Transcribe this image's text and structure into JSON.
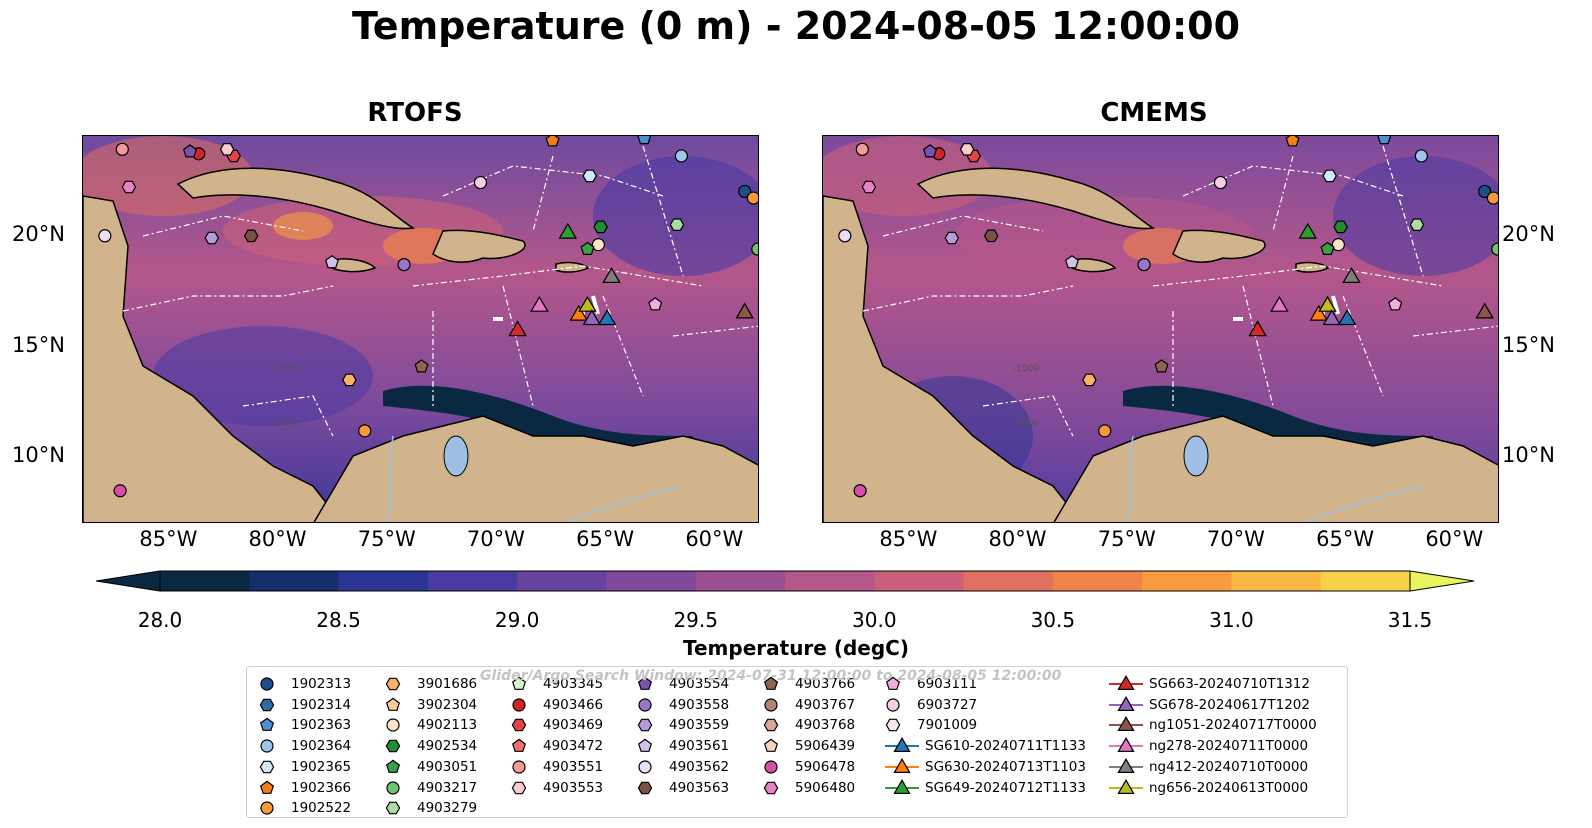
{
  "title": "Temperature (0 m) - 2024-08-05 12:00:00",
  "panels": [
    {
      "title": "RTOFS"
    },
    {
      "title": "CMEMS"
    }
  ],
  "map": {
    "lon_range": [
      -89,
      -58
    ],
    "lat_range": [
      7,
      24.5
    ],
    "lon_ticks": [
      "85°W",
      "80°W",
      "75°W",
      "70°W",
      "65°W",
      "60°W"
    ],
    "lat_ticks": [
      "20°N",
      "15°N",
      "10°N"
    ],
    "land_color": "#d2b48c",
    "contour_labels": [
      "-1000",
      "-1000"
    ]
  },
  "colorbar": {
    "title": "Temperature (degC)",
    "min": 28.0,
    "max": 31.5,
    "step": 0.25,
    "extend": "both",
    "ticks": [
      "28.0",
      "28.5",
      "29.0",
      "29.5",
      "30.0",
      "30.5",
      "31.0",
      "31.5"
    ],
    "colors": [
      "#0b2842",
      "#142f6a",
      "#2c3494",
      "#4a3ba3",
      "#67439f",
      "#80499a",
      "#9b4f93",
      "#b4578a",
      "#cb6079",
      "#e0705f",
      "#f08349",
      "#f89c3f",
      "#fab746",
      "#f5d24a",
      "#e9f55e"
    ]
  },
  "watermark": "Glider/Argo Search Window: 2024-07-31 12:00:00 to 2024-08-05 12:00:00",
  "legend": {
    "columns": [
      [
        {
          "label": "1902313",
          "marker": "circle",
          "color": "#1f4e8c"
        },
        {
          "label": "1902314",
          "marker": "hexagon",
          "color": "#2e6aa8"
        },
        {
          "label": "1902363",
          "marker": "pentagon",
          "color": "#4f8fcf"
        },
        {
          "label": "1902364",
          "marker": "circle",
          "color": "#9ec6ec"
        },
        {
          "label": "1902365",
          "marker": "hexagon",
          "color": "#d6e8f7"
        },
        {
          "label": "1902366",
          "marker": "pentagon",
          "color": "#f07f1a"
        },
        {
          "label": "1902522",
          "marker": "circle",
          "color": "#f59a3c"
        }
      ],
      [
        {
          "label": "3901686",
          "marker": "hexagon",
          "color": "#f7b26b"
        },
        {
          "label": "3902304",
          "marker": "pentagon",
          "color": "#fbcc9a"
        },
        {
          "label": "4902113",
          "marker": "circle",
          "color": "#fde3c8"
        },
        {
          "label": "4902534",
          "marker": "hexagon",
          "color": "#238b2f"
        },
        {
          "label": "4903051",
          "marker": "pentagon",
          "color": "#39a14a"
        },
        {
          "label": "4903217",
          "marker": "circle",
          "color": "#6cc56a"
        },
        {
          "label": "4903279",
          "marker": "hexagon",
          "color": "#a8dea0"
        }
      ],
      [
        {
          "label": "4903345",
          "marker": "pentagon",
          "color": "#d9f2d0"
        },
        {
          "label": "4903466",
          "marker": "circle",
          "color": "#d0232b"
        },
        {
          "label": "4903469",
          "marker": "hexagon",
          "color": "#e0464a"
        },
        {
          "label": "4903472",
          "marker": "pentagon",
          "color": "#ec6f70"
        },
        {
          "label": "4903551",
          "marker": "circle",
          "color": "#f29c9a"
        },
        {
          "label": "4903553",
          "marker": "hexagon",
          "color": "#f8cccb"
        }
      ],
      [
        {
          "label": "4903554",
          "marker": "pentagon",
          "color": "#7b52b0"
        },
        {
          "label": "4903558",
          "marker": "circle",
          "color": "#9a77c6"
        },
        {
          "label": "4903559",
          "marker": "hexagon",
          "color": "#b79ad8"
        },
        {
          "label": "4903561",
          "marker": "pentagon",
          "color": "#d3c0e8"
        },
        {
          "label": "4903562",
          "marker": "circle",
          "color": "#ebdff5"
        },
        {
          "label": "4903563",
          "marker": "hexagon",
          "color": "#7a5242"
        }
      ],
      [
        {
          "label": "4903766",
          "marker": "pentagon",
          "color": "#8e6452"
        },
        {
          "label": "4903767",
          "marker": "circle",
          "color": "#b08472"
        },
        {
          "label": "4903768",
          "marker": "hexagon",
          "color": "#d4a996"
        },
        {
          "label": "5906439",
          "marker": "pentagon",
          "color": "#f5d2c4"
        },
        {
          "label": "5906478",
          "marker": "circle",
          "color": "#d84fa8"
        },
        {
          "label": "5906480",
          "marker": "hexagon",
          "color": "#e883c3"
        }
      ],
      [
        {
          "label": "6903111",
          "marker": "pentagon",
          "color": "#f2aed9"
        },
        {
          "label": "6903727",
          "marker": "circle",
          "color": "#f8cbe7"
        },
        {
          "label": "7901009",
          "marker": "hexagon",
          "color": "#fbe3f1"
        },
        {
          "label": "SG610-20240711T1133",
          "marker": "triangle",
          "color": "#1f77b4"
        },
        {
          "label": "SG630-20240713T1103",
          "marker": "triangle",
          "color": "#ff7f0e"
        },
        {
          "label": "SG649-20240712T1133",
          "marker": "triangle",
          "color": "#2ca02c"
        }
      ],
      [
        {
          "label": "SG663-20240710T1312",
          "marker": "triangle",
          "color": "#d62728"
        },
        {
          "label": "SG678-20240617T1202",
          "marker": "triangle",
          "color": "#9467bd"
        },
        {
          "label": "ng1051-20240717T0000",
          "marker": "triangle",
          "color": "#8c564b"
        },
        {
          "label": "ng278-20240711T0000",
          "marker": "triangle",
          "color": "#e377c2"
        },
        {
          "label": "ng412-20240710T0000",
          "marker": "triangle",
          "color": "#7f7f7f"
        },
        {
          "label": "ng656-20240613T0000",
          "marker": "triangle",
          "color": "#bcbd22"
        }
      ]
    ]
  },
  "platforms": [
    {
      "label": "1902313",
      "lon": -58.7,
      "lat": 22.0
    },
    {
      "label": "1902366",
      "lon": -67.5,
      "lat": 24.3
    },
    {
      "label": "1902363",
      "lon": -63.3,
      "lat": 24.4
    },
    {
      "label": "1902364",
      "lon": -61.6,
      "lat": 23.6
    },
    {
      "label": "1902365",
      "lon": -65.8,
      "lat": 22.7
    },
    {
      "label": "1902522",
      "lon": -58.3,
      "lat": 21.7
    },
    {
      "label": "1902522",
      "lon": -76.1,
      "lat": 11.2
    },
    {
      "label": "3901686",
      "lon": -76.8,
      "lat": 13.5
    },
    {
      "label": "4902113",
      "lon": -65.4,
      "lat": 19.6
    },
    {
      "label": "4902534",
      "lon": -65.3,
      "lat": 20.4
    },
    {
      "label": "4903051",
      "lon": -65.9,
      "lat": 19.4
    },
    {
      "label": "4903217",
      "lon": -58.1,
      "lat": 19.4
    },
    {
      "label": "4903279",
      "lon": -61.8,
      "lat": 20.5
    },
    {
      "label": "4903466",
      "lon": -83.7,
      "lat": 23.7
    },
    {
      "label": "4903469",
      "lon": -82.1,
      "lat": 23.6
    },
    {
      "label": "4903551",
      "lon": -87.2,
      "lat": 23.9
    },
    {
      "label": "4903553",
      "lon": -82.4,
      "lat": 23.9
    },
    {
      "label": "4903554",
      "lon": -84.1,
      "lat": 23.8
    },
    {
      "label": "4903558",
      "lon": -74.3,
      "lat": 18.7
    },
    {
      "label": "4903559",
      "lon": -83.1,
      "lat": 19.9
    },
    {
      "label": "4903561",
      "lon": -77.6,
      "lat": 18.8
    },
    {
      "label": "4903562",
      "lon": -88.0,
      "lat": 20.0
    },
    {
      "label": "4903563",
      "lon": -81.3,
      "lat": 20.0
    },
    {
      "label": "4903766",
      "lon": -73.5,
      "lat": 14.1
    },
    {
      "label": "5906480",
      "lon": -86.9,
      "lat": 22.2
    },
    {
      "label": "6903727",
      "lon": -70.8,
      "lat": 22.4
    },
    {
      "label": "6903111",
      "lon": -62.8,
      "lat": 16.9
    },
    {
      "label": "5906478",
      "lon": -87.3,
      "lat": 8.5
    }
  ],
  "gliders": [
    {
      "label": "SG663-20240710T1312",
      "lon": -69.1,
      "lat": 15.8
    },
    {
      "label": "ng278-20240711T0000",
      "lon": -68.1,
      "lat": 16.9
    },
    {
      "label": "SG630-20240713T1103",
      "lon": -66.3,
      "lat": 16.5
    },
    {
      "label": "ng656-20240613T0000",
      "lon": -65.9,
      "lat": 16.9
    },
    {
      "label": "SG678-20240617T1202",
      "lon": -65.7,
      "lat": 16.3
    },
    {
      "label": "SG610-20240711T1133",
      "lon": -65.0,
      "lat": 16.3
    },
    {
      "label": "SG649-20240712T1133",
      "lon": -66.8,
      "lat": 20.2
    },
    {
      "label": "ng412-20240710T0000",
      "lon": -64.8,
      "lat": 18.2
    },
    {
      "label": "ng1051-20240717T0000",
      "lon": -58.7,
      "lat": 16.6
    }
  ]
}
